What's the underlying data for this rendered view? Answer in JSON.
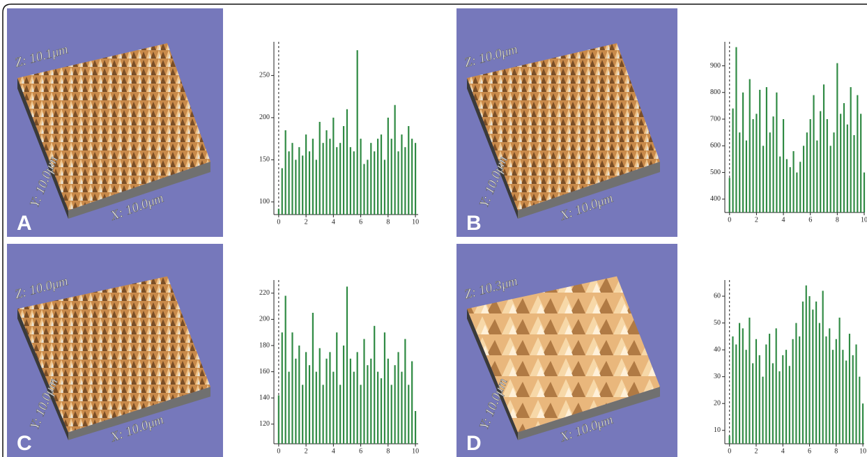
{
  "chart_data": [
    {
      "type": "bar",
      "panel_label": "A",
      "z_label": "Z: 10.1μm",
      "y_label": "Y: 10.0μm",
      "x_label": "X: 10.0μm",
      "color": "#2f8a43",
      "x": [
        0,
        0.25,
        0.5,
        0.75,
        1,
        1.25,
        1.5,
        1.75,
        2,
        2.25,
        2.5,
        2.75,
        3,
        3.25,
        3.5,
        3.75,
        4,
        4.25,
        4.5,
        4.75,
        5,
        5.25,
        5.5,
        5.75,
        6,
        6.25,
        6.5,
        6.75,
        7,
        7.25,
        7.5,
        7.75,
        8,
        8.25,
        8.5,
        8.75,
        9,
        9.25,
        9.5,
        9.75,
        10
      ],
      "values": [
        92,
        140,
        185,
        160,
        170,
        150,
        165,
        155,
        180,
        160,
        175,
        150,
        195,
        170,
        185,
        175,
        200,
        165,
        170,
        190,
        210,
        165,
        160,
        280,
        175,
        145,
        150,
        170,
        160,
        175,
        180,
        150,
        200,
        175,
        215,
        160,
        180,
        165,
        190,
        175,
        170
      ],
      "xlim": [
        -0.35,
        10.2
      ],
      "ylim": [
        85,
        290
      ],
      "xticks": [
        0,
        2,
        4,
        6,
        8,
        10
      ],
      "yticks": [
        100,
        150,
        200,
        250
      ]
    },
    {
      "type": "bar",
      "panel_label": "B",
      "z_label": "Z: 10.0μm",
      "y_label": "Y: 10.0μm",
      "x_label": "X: 10.0μm",
      "color": "#2f8a43",
      "x": [
        0,
        0.25,
        0.5,
        0.75,
        1,
        1.25,
        1.5,
        1.75,
        2,
        2.25,
        2.5,
        2.75,
        3,
        3.25,
        3.5,
        3.75,
        4,
        4.25,
        4.5,
        4.75,
        5,
        5.25,
        5.5,
        5.75,
        6,
        6.25,
        6.5,
        6.75,
        7,
        7.25,
        7.5,
        7.75,
        8,
        8.25,
        8.5,
        8.75,
        9,
        9.25,
        9.5,
        9.75,
        10
      ],
      "values": [
        480,
        740,
        970,
        650,
        800,
        620,
        850,
        700,
        720,
        810,
        600,
        820,
        650,
        710,
        800,
        560,
        700,
        550,
        520,
        580,
        500,
        540,
        600,
        650,
        700,
        790,
        620,
        730,
        830,
        700,
        600,
        650,
        910,
        720,
        760,
        680,
        820,
        640,
        790,
        720,
        500
      ],
      "xlim": [
        -0.35,
        10
      ],
      "ylim": [
        350,
        990
      ],
      "xticks": [
        0,
        2,
        4,
        6,
        8,
        10
      ],
      "yticks": [
        400,
        500,
        600,
        700,
        800,
        900
      ]
    },
    {
      "type": "bar",
      "panel_label": "C",
      "z_label": "Z: 10.0μm",
      "y_label": "Y: 10.0μm",
      "x_label": "X: 10.0μm",
      "color": "#2f8a43",
      "x": [
        0,
        0.25,
        0.5,
        0.75,
        1,
        1.25,
        1.5,
        1.75,
        2,
        2.25,
        2.5,
        2.75,
        3,
        3.25,
        3.5,
        3.75,
        4,
        4.25,
        4.5,
        4.75,
        5,
        5.25,
        5.5,
        5.75,
        6,
        6.25,
        6.5,
        6.75,
        7,
        7.25,
        7.5,
        7.75,
        8,
        8.25,
        8.5,
        8.75,
        9,
        9.25,
        9.5,
        9.75,
        10
      ],
      "values": [
        142,
        190,
        218,
        160,
        190,
        170,
        180,
        150,
        175,
        165,
        205,
        160,
        178,
        150,
        170,
        175,
        160,
        190,
        150,
        180,
        225,
        170,
        160,
        175,
        150,
        185,
        165,
        170,
        195,
        160,
        155,
        190,
        170,
        150,
        165,
        175,
        160,
        185,
        150,
        168,
        130
      ],
      "xlim": [
        -0.35,
        10.2
      ],
      "ylim": [
        105,
        230
      ],
      "xticks": [
        0,
        2,
        4,
        6,
        8,
        10
      ],
      "yticks": [
        120,
        140,
        160,
        180,
        200,
        220
      ]
    },
    {
      "type": "bar",
      "panel_label": "D",
      "z_label": "Z: 10.3μm",
      "y_label": "Y: 10.0μm",
      "x_label": "X: 10.0μm",
      "color": "#2f8a43",
      "x": [
        0,
        0.25,
        0.5,
        0.75,
        1,
        1.25,
        1.5,
        1.75,
        2,
        2.25,
        2.5,
        2.75,
        3,
        3.25,
        3.5,
        3.75,
        4,
        4.25,
        4.5,
        4.75,
        5,
        5.25,
        5.5,
        5.75,
        6,
        6.25,
        6.5,
        6.75,
        7,
        7.25,
        7.5,
        7.75,
        8,
        8.25,
        8.5,
        8.75,
        9,
        9.25,
        9.5,
        9.75,
        10
      ],
      "values": [
        8,
        45,
        42,
        50,
        48,
        40,
        52,
        35,
        44,
        38,
        30,
        42,
        46,
        35,
        48,
        32,
        38,
        40,
        34,
        44,
        50,
        45,
        58,
        64,
        60,
        55,
        58,
        50,
        62,
        45,
        48,
        40,
        44,
        52,
        40,
        36,
        46,
        38,
        42,
        30,
        20
      ],
      "xlim": [
        -0.35,
        10.1
      ],
      "ylim": [
        5,
        66
      ],
      "xticks": [
        0,
        2,
        4,
        6,
        8,
        10
      ],
      "yticks": [
        10,
        20,
        30,
        40,
        50,
        60
      ]
    }
  ]
}
